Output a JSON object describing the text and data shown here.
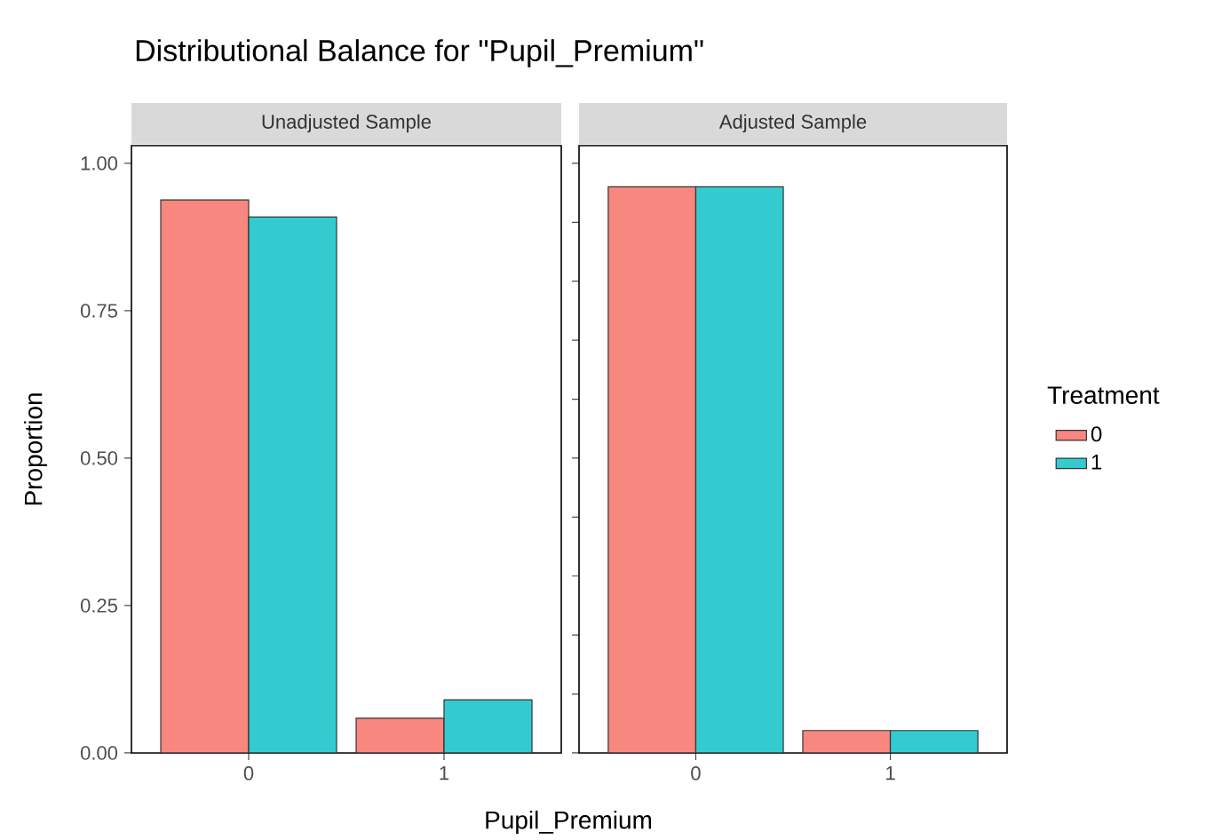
{
  "chart_data": [
    {
      "type": "bar",
      "title": "Distributional Balance for \"Pupil_Premium\"",
      "subtitle": "Unadjusted Sample",
      "xlabel": "Pupil_Premium",
      "ylabel": "Proportion",
      "categories": [
        "0",
        "1"
      ],
      "series": [
        {
          "color": "#f8877f",
          "values": [
            0.938,
            0.059
          ]
        },
        {
          "color": "#33cbcf",
          "values": [
            0.909,
            0.09
          ]
        }
      ],
      "ylim": [
        0,
        1.03
      ],
      "yticks": [
        {
          "value": 0,
          "label": "0.00"
        },
        {
          "value": 0.25,
          "label": "0.25"
        },
        {
          "value": 0.5,
          "label": "0.50"
        },
        {
          "value": 0.75,
          "label": "0.75"
        },
        {
          "value": 1,
          "label": "1.00"
        }
      ],
      "grid": false
    },
    {
      "type": "bar",
      "subtitle": "Adjusted Sample",
      "legend_title": "Treatment",
      "legend": "right",
      "categories": [
        "0",
        "1"
      ],
      "series": [
        {
          "name": "0",
          "color": "#f8877f",
          "values": [
            0.96,
            0.038
          ]
        },
        {
          "name": "1",
          "color": "#33cbcf",
          "values": [
            0.96,
            0.038
          ]
        }
      ],
      "ylim": [
        0,
        1.03
      ],
      "tick_labels": "x",
      "grid": false
    }
  ]
}
